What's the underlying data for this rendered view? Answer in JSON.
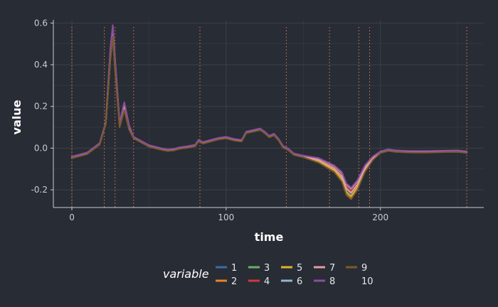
{
  "chart_data": {
    "type": "line",
    "xlabel": "time",
    "ylabel": "value",
    "xlim": [
      -12,
      267
    ],
    "ylim": [
      -0.285,
      0.615
    ],
    "x_ticks": [
      0,
      100,
      200
    ],
    "x_tick_labels": [
      "0",
      "100",
      "200"
    ],
    "y_ticks": [
      -0.2,
      0.0,
      0.2,
      0.4,
      0.6
    ],
    "y_tick_labels": [
      "-0.2",
      "0.0",
      "0.2",
      "0.4",
      "0.6"
    ],
    "grid": true,
    "background": "#282c34",
    "grid_color": "#3b404a",
    "vlines_color": "#e07a5f",
    "vlines_x": [
      0,
      21,
      28,
      40,
      83,
      139,
      167,
      186,
      193,
      256
    ],
    "legend": {
      "title": "variable",
      "position": "bottom",
      "entries": [
        {
          "label": "1",
          "color": "#3b6ea8"
        },
        {
          "label": "2",
          "color": "#e8832a"
        },
        {
          "label": "3",
          "color": "#6ab06a"
        },
        {
          "label": "4",
          "color": "#d03a3a"
        },
        {
          "label": "5",
          "color": "#d8b430"
        },
        {
          "label": "6",
          "color": "#8fb7c9"
        },
        {
          "label": "7",
          "color": "#e89aa0"
        },
        {
          "label": "8",
          "color": "#8a4ea0"
        },
        {
          "label": "9",
          "color": "#7a5a2e"
        },
        {
          "label": "10",
          "color": "#282c34"
        }
      ]
    },
    "x": [
      0,
      10,
      18,
      22,
      25,
      26.5,
      28,
      31,
      34,
      37,
      40,
      45,
      50,
      58,
      62,
      66,
      70,
      75,
      80,
      82,
      85,
      90,
      95,
      100,
      105,
      110,
      113,
      116,
      119,
      122,
      125,
      128,
      131,
      134,
      137,
      140,
      144,
      150,
      160,
      170,
      175,
      178,
      181,
      185,
      190,
      195,
      200,
      205,
      210,
      220,
      230,
      240,
      250,
      256
    ],
    "series": [
      {
        "name": "1",
        "offset": 0.0
      },
      {
        "name": "2",
        "offset": -0.008
      },
      {
        "name": "3",
        "offset": 0.004
      },
      {
        "name": "4",
        "offset": 0.006
      },
      {
        "name": "5",
        "offset": -0.004
      },
      {
        "name": "6",
        "offset": 0.01
      },
      {
        "name": "7",
        "offset": 0.002
      },
      {
        "name": "8",
        "offset": 0.012
      },
      {
        "name": "9",
        "offset": -0.01
      }
    ],
    "base_values": [
      -0.045,
      -0.025,
      0.02,
      0.12,
      0.45,
      0.56,
      0.4,
      0.11,
      0.2,
      0.1,
      0.05,
      0.03,
      0.01,
      -0.005,
      -0.01,
      -0.008,
      0.0,
      0.005,
      0.012,
      0.035,
      0.025,
      0.035,
      0.045,
      0.05,
      0.04,
      0.035,
      0.075,
      0.08,
      0.085,
      0.09,
      0.075,
      0.055,
      0.065,
      0.04,
      0.005,
      -0.005,
      -0.03,
      -0.04,
      -0.06,
      -0.1,
      -0.14,
      -0.2,
      -0.22,
      -0.18,
      -0.1,
      -0.05,
      -0.02,
      -0.01,
      -0.015,
      -0.018,
      -0.018,
      -0.016,
      -0.015,
      -0.02
    ],
    "peak_spread": [
      0,
      0,
      0,
      0,
      1,
      1,
      1,
      0.3,
      0.6,
      0.3,
      0,
      0,
      0,
      0,
      0,
      0,
      0,
      0,
      0,
      0,
      0,
      0,
      0,
      0,
      0,
      0,
      0,
      0,
      0,
      0,
      0,
      0,
      0,
      0,
      0,
      0,
      0,
      0,
      0.3,
      0.5,
      0.8,
      1,
      1,
      0.8,
      0.5,
      0.2,
      0,
      0,
      0,
      0,
      0,
      0,
      0,
      0
    ]
  }
}
